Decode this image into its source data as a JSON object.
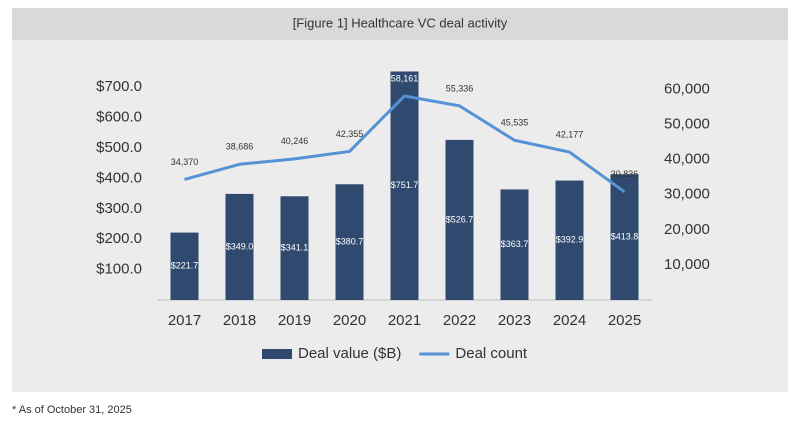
{
  "chart_data": {
    "type": "bar",
    "title": "[Figure 1] Healthcare VC deal activity",
    "categories": [
      "2017",
      "2018",
      "2019",
      "2020",
      "2021",
      "2022",
      "2023",
      "2024",
      "2025"
    ],
    "series": [
      {
        "name": "Deal value ($B)",
        "type": "bar",
        "color": "#2f4a6e",
        "values": [
          221.7,
          349.0,
          341.1,
          380.7,
          751.7,
          526.7,
          363.7,
          392.9,
          413.8
        ],
        "value_labels": [
          "$221.7",
          "$349.0",
          "$341.1",
          "$380.7",
          "$751.7",
          "$526.7",
          "$363.7",
          "$392.9",
          "$413.8"
        ]
      },
      {
        "name": "Deal count",
        "type": "line",
        "axis": "y2",
        "color": "#5592d6",
        "values": [
          34370,
          38686,
          40246,
          42355,
          58161,
          55336,
          45535,
          42177,
          30836
        ],
        "value_labels": [
          "34,370",
          "38,686",
          "40,246",
          "42,355",
          "58,161",
          "55,336",
          "45,535",
          "42,177",
          "30,836"
        ]
      }
    ],
    "ylim": [
      0,
      750
    ],
    "yticks": [
      {
        "value": 100,
        "label": "$100.0"
      },
      {
        "value": 200,
        "label": "$200.0"
      },
      {
        "value": 300,
        "label": "$300.0"
      },
      {
        "value": 400,
        "label": "$400.0"
      },
      {
        "value": 500,
        "label": "$500.0"
      },
      {
        "value": 600,
        "label": "$600.0"
      },
      {
        "value": 700,
        "label": "$700.0"
      }
    ],
    "y2lim": [
      0,
      65000
    ],
    "y2ticks": [
      {
        "value": 10000,
        "label": "10,000"
      },
      {
        "value": 20000,
        "label": "20,000"
      },
      {
        "value": 30000,
        "label": "30,000"
      },
      {
        "value": 40000,
        "label": "40,000"
      },
      {
        "value": 50000,
        "label": "50,000"
      },
      {
        "value": 60000,
        "label": "60,000"
      }
    ],
    "grid": false,
    "legend": "bottom"
  },
  "footnote": "* As of October 31, 2025"
}
